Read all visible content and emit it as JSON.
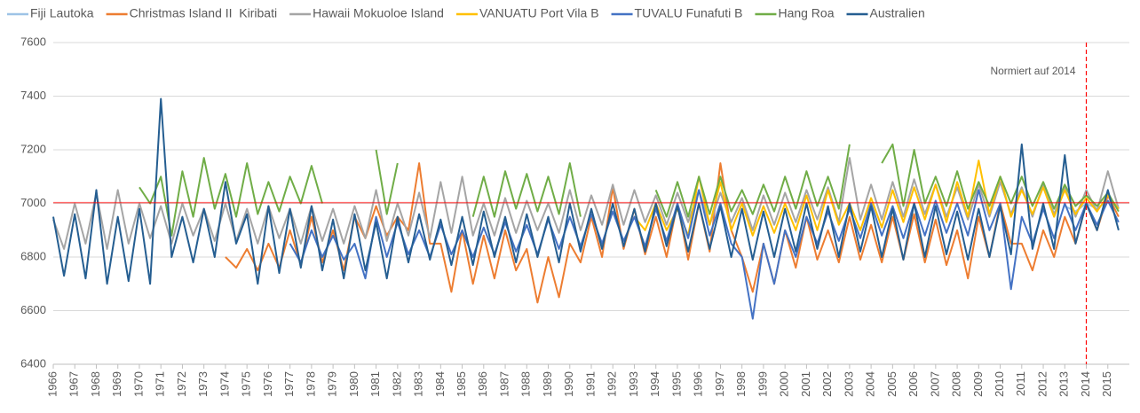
{
  "chart_data": {
    "type": "line",
    "x": [
      1966,
      1966.5,
      1967,
      1967.5,
      1968,
      1968.5,
      1969,
      1969.5,
      1970,
      1970.5,
      1971,
      1971.5,
      1972,
      1972.5,
      1973,
      1973.5,
      1974,
      1974.5,
      1975,
      1975.5,
      1976,
      1976.5,
      1977,
      1977.5,
      1978,
      1978.5,
      1979,
      1979.5,
      1980,
      1980.5,
      1981,
      1981.5,
      1982,
      1982.5,
      1983,
      1983.5,
      1984,
      1984.5,
      1985,
      1985.5,
      1986,
      1986.5,
      1987,
      1987.5,
      1988,
      1988.5,
      1989,
      1989.5,
      1990,
      1990.5,
      1991,
      1991.5,
      1992,
      1992.5,
      1993,
      1993.5,
      1994,
      1994.5,
      1995,
      1995.5,
      1996,
      1996.5,
      1997,
      1997.5,
      1998,
      1998.5,
      1999,
      1999.5,
      2000,
      2000.5,
      2001,
      2001.5,
      2002,
      2002.5,
      2003,
      2003.5,
      2004,
      2004.5,
      2005,
      2005.5,
      2006,
      2006.5,
      2007,
      2007.5,
      2008,
      2008.5,
      2009,
      2009.5,
      2010,
      2010.5,
      2011,
      2011.5,
      2012,
      2012.5,
      2013,
      2013.5,
      2014,
      2014.5,
      2015,
      2015.5
    ],
    "xlim": [
      1966,
      2016
    ],
    "xticks": [
      1966,
      1967,
      1968,
      1969,
      1970,
      1971,
      1972,
      1973,
      1974,
      1975,
      1976,
      1977,
      1978,
      1979,
      1980,
      1981,
      1982,
      1983,
      1984,
      1985,
      1986,
      1987,
      1988,
      1989,
      1990,
      1991,
      1992,
      1993,
      1994,
      1995,
      1996,
      1997,
      1998,
      1999,
      2000,
      2001,
      2002,
      2003,
      2004,
      2005,
      2006,
      2007,
      2008,
      2009,
      2010,
      2011,
      2012,
      2013,
      2014,
      2015
    ],
    "ylim": [
      6400,
      7600
    ],
    "yticks": [
      6400,
      6600,
      6800,
      7000,
      7200,
      7400,
      7600
    ],
    "grid": true,
    "legend": "top",
    "reference_y": 7003,
    "reference_x": 2014,
    "reference_color": "#ff0000",
    "annotation": "Normiert auf 2014",
    "series": [
      {
        "name": "Fiji Lautoka",
        "color": "#9dc3e6",
        "values": [
          null,
          null,
          null,
          null,
          null,
          null,
          null,
          null,
          null,
          null,
          null,
          null,
          null,
          null,
          null,
          null,
          null,
          null,
          null,
          null,
          null,
          null,
          null,
          null,
          null,
          null,
          null,
          null,
          null,
          null,
          null,
          null,
          null,
          null,
          null,
          null,
          null,
          null,
          null,
          null,
          null,
          null,
          null,
          null,
          null,
          null,
          null,
          null,
          null,
          null,
          null,
          null,
          null,
          null,
          null,
          null,
          null,
          null,
          null,
          null,
          null,
          null,
          null,
          null,
          null,
          null,
          null,
          null,
          null,
          null,
          null,
          null,
          null,
          null,
          null,
          null,
          null,
          null,
          null,
          null,
          null,
          null,
          null,
          null,
          null,
          null,
          null,
          null,
          null,
          null,
          null,
          null,
          null,
          null,
          6990,
          6970,
          7000,
          6980,
          7010,
          6990
        ]
      },
      {
        "name": "Christmas Island II  Kiribati",
        "color": "#ed7d31",
        "values": [
          null,
          null,
          null,
          null,
          null,
          null,
          null,
          null,
          null,
          null,
          null,
          null,
          null,
          null,
          null,
          null,
          6800,
          6760,
          6830,
          6750,
          6850,
          6760,
          6900,
          6770,
          6950,
          6780,
          6900,
          6750,
          6950,
          6870,
          6990,
          6880,
          6950,
          6900,
          7150,
          6850,
          6850,
          6670,
          6900,
          6700,
          6880,
          6720,
          6900,
          6750,
          6830,
          6630,
          6800,
          6650,
          6850,
          6780,
          6950,
          6800,
          7060,
          6830,
          6980,
          6810,
          6950,
          6800,
          7000,
          6790,
          7000,
          6820,
          7150,
          6900,
          6800,
          6670,
          6850,
          6700,
          6900,
          6760,
          6950,
          6790,
          6900,
          6780,
          6950,
          6790,
          6920,
          6780,
          6950,
          6790,
          6960,
          6780,
          6940,
          6770,
          6900,
          6720,
          6950,
          6800,
          7000,
          6850,
          6850,
          6750,
          6900,
          6800,
          6950,
          6850,
          7000,
          6900,
          7030,
          6950
        ]
      },
      {
        "name": "Hawaii Mokuoloe Island",
        "color": "#a5a5a5",
        "values": [
          6940,
          6830,
          7000,
          6850,
          7040,
          6830,
          7050,
          6850,
          7000,
          6870,
          6990,
          6850,
          7000,
          6880,
          6980,
          6860,
          7000,
          6860,
          6980,
          6850,
          6990,
          6870,
          6980,
          6850,
          6990,
          6860,
          6980,
          6850,
          6990,
          6870,
          7050,
          6860,
          7000,
          6880,
          7040,
          6870,
          7080,
          6890,
          7100,
          6880,
          7000,
          6880,
          7020,
          6890,
          7010,
          6900,
          7000,
          6890,
          7050,
          6900,
          7030,
          6920,
          7070,
          6920,
          7050,
          6930,
          7030,
          6920,
          7040,
          6930,
          7050,
          6920,
          7040,
          6930,
          7020,
          6900,
          7030,
          6920,
          7040,
          6930,
          7050,
          6940,
          7060,
          6930,
          7170,
          6940,
          7070,
          6940,
          7080,
          6950,
          7090,
          6960,
          7070,
          6950,
          7060,
          6940,
          7070,
          6950,
          7080,
          6960,
          7060,
          6950,
          7070,
          6960,
          7060,
          6950,
          7050,
          6970,
          7120,
          6980
        ]
      },
      {
        "name": "VANUATU Port Vila B",
        "color": "#ffc000",
        "values": [
          null,
          null,
          null,
          null,
          null,
          null,
          null,
          null,
          null,
          null,
          null,
          null,
          null,
          null,
          null,
          null,
          null,
          null,
          null,
          null,
          null,
          null,
          null,
          null,
          null,
          null,
          null,
          null,
          null,
          null,
          null,
          null,
          null,
          null,
          null,
          null,
          null,
          null,
          null,
          null,
          null,
          null,
          null,
          null,
          null,
          null,
          null,
          null,
          null,
          null,
          null,
          null,
          null,
          null,
          6950,
          6900,
          7000,
          6900,
          6980,
          6880,
          7100,
          6920,
          7080,
          6900,
          7000,
          6880,
          6990,
          6890,
          7000,
          6900,
          7030,
          6900,
          7050,
          6920,
          7000,
          6900,
          7020,
          6910,
          7050,
          6930,
          7060,
          6940,
          7070,
          6930,
          7080,
          6950,
          7160,
          6960,
          7100,
          6950,
          7050,
          6960,
          7060,
          6950,
          7050,
          6960,
          7020,
          6970,
          7030,
          6980
        ]
      },
      {
        "name": "TUVALU Funafuti B",
        "color": "#4472c4",
        "values": [
          null,
          null,
          null,
          null,
          null,
          null,
          null,
          null,
          null,
          null,
          null,
          null,
          null,
          null,
          null,
          null,
          null,
          null,
          null,
          null,
          null,
          null,
          6850,
          6780,
          6900,
          6800,
          6880,
          6790,
          6850,
          6720,
          6950,
          6800,
          6930,
          6810,
          6900,
          6800,
          6920,
          6810,
          6900,
          6800,
          6910,
          6810,
          6930,
          6820,
          6920,
          6810,
          6940,
          6830,
          6950,
          6840,
          6960,
          6850,
          6970,
          6860,
          6950,
          6840,
          6980,
          6860,
          7000,
          6870,
          7050,
          6880,
          7000,
          6850,
          6800,
          6570,
          6850,
          6700,
          6900,
          6800,
          6950,
          6850,
          6970,
          6860,
          6980,
          6870,
          7000,
          6880,
          6990,
          6870,
          7000,
          6880,
          7010,
          6890,
          7000,
          6880,
          7050,
          6900,
          7000,
          6680,
          6950,
          6850,
          6980,
          6870,
          7000,
          6900,
          7000,
          6920,
          7010,
          6930
        ]
      },
      {
        "name": "Hang Roa",
        "color": "#70ad47",
        "values": [
          null,
          null,
          null,
          null,
          null,
          null,
          null,
          null,
          7060,
          7000,
          7100,
          6880,
          7120,
          6950,
          7170,
          6980,
          7110,
          6950,
          7150,
          6960,
          7080,
          6970,
          7100,
          7000,
          7140,
          7000,
          null,
          null,
          null,
          null,
          7200,
          6960,
          7150,
          null,
          null,
          null,
          null,
          null,
          null,
          6950,
          7100,
          6950,
          7120,
          6980,
          7110,
          6970,
          7100,
          6960,
          7150,
          6950,
          null,
          null,
          null,
          null,
          null,
          null,
          7050,
          6950,
          7080,
          6950,
          7100,
          6960,
          7100,
          6970,
          7050,
          6960,
          7070,
          6970,
          7100,
          6980,
          7120,
          6990,
          7100,
          6980,
          7220,
          null,
          null,
          7150,
          7220,
          6990,
          7200,
          7000,
          7100,
          6990,
          7120,
          6980,
          7080,
          6990,
          7100,
          7000,
          7100,
          6990,
          7080,
          6980,
          7070,
          6990,
          7030,
          6990,
          7040,
          6970
        ]
      },
      {
        "name": "Australien",
        "color": "#255e91",
        "values": [
          6950,
          6730,
          6960,
          6720,
          7050,
          6700,
          6950,
          6710,
          6980,
          6700,
          7390,
          6800,
          6950,
          6780,
          6980,
          6800,
          7080,
          6850,
          6960,
          6700,
          6990,
          6740,
          6980,
          6760,
          6990,
          6750,
          6940,
          6720,
          6960,
          6750,
          6930,
          6720,
          6950,
          6780,
          6960,
          6790,
          6940,
          6770,
          6950,
          6770,
          6970,
          6800,
          6950,
          6780,
          6960,
          6800,
          6950,
          6780,
          7000,
          6820,
          6980,
          6830,
          7000,
          6840,
          6980,
          6820,
          7000,
          6840,
          6990,
          6820,
          7000,
          6830,
          6990,
          6800,
          6980,
          6790,
          6970,
          6800,
          6980,
          6820,
          7000,
          6830,
          6990,
          6800,
          7000,
          6820,
          6990,
          6800,
          6980,
          6790,
          7000,
          6800,
          6990,
          6810,
          6970,
          6790,
          6980,
          6800,
          6990,
          6810,
          7220,
          6830,
          7000,
          6830,
          7180,
          6850,
          7000,
          6900,
          7050,
          6900
        ]
      }
    ]
  }
}
